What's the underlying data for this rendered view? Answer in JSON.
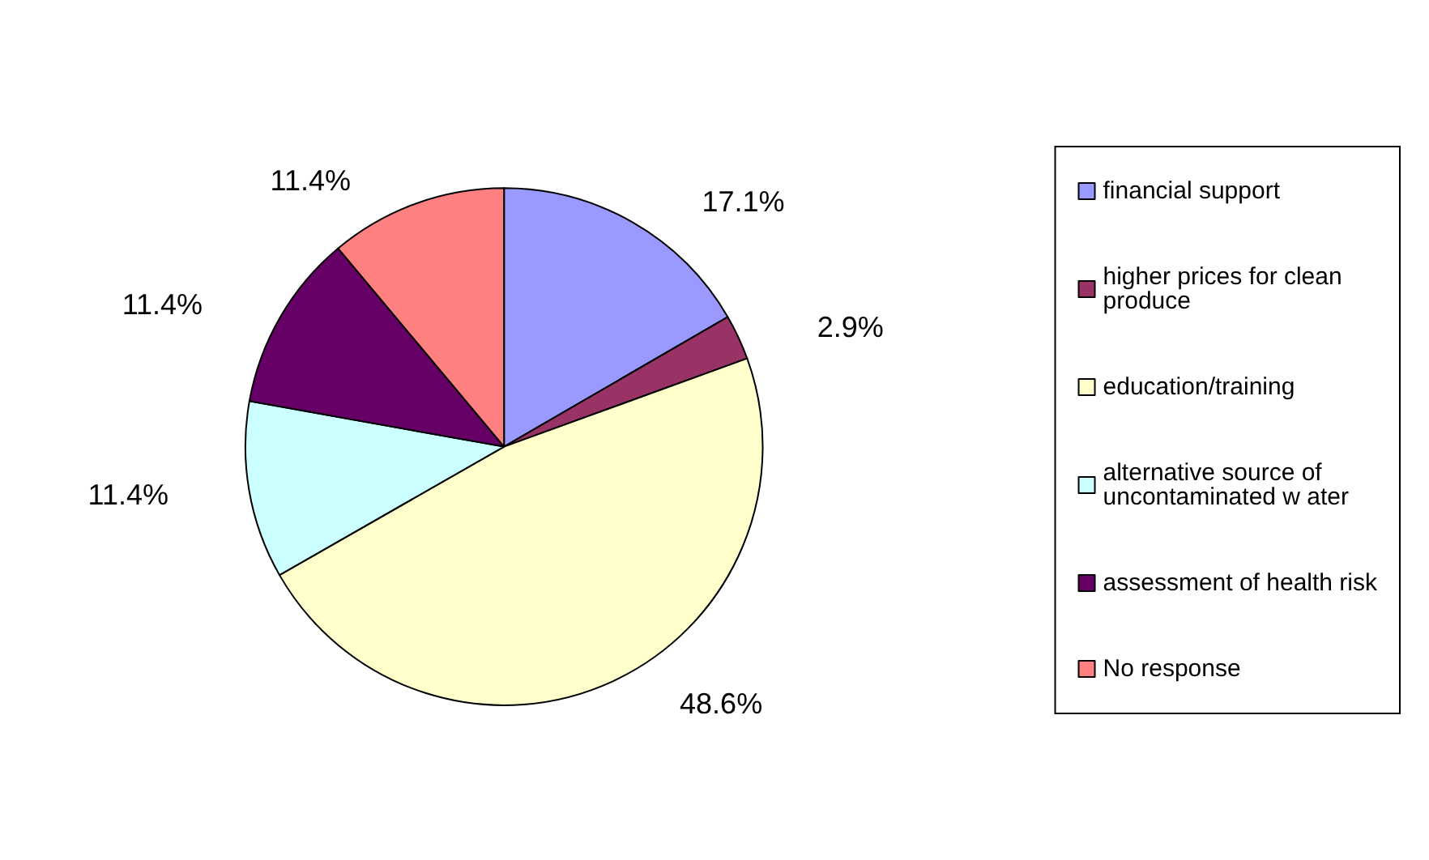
{
  "chart_data": {
    "type": "pie",
    "categories": [
      "financial support",
      "higher prices for clean produce",
      "education/training",
      "alternative source of uncontaminated w ater",
      "assessment of health risk",
      "No response"
    ],
    "values": [
      17.1,
      2.9,
      48.6,
      11.4,
      11.4,
      11.4
    ],
    "colors": [
      "#9999ff",
      "#993366",
      "#ffffcc",
      "#ccffff",
      "#660066",
      "#ff8080"
    ],
    "value_labels": [
      "17.1%",
      "2.9%",
      "48.6%",
      "11.4%",
      "11.4%",
      "11.4%"
    ],
    "legend": "right"
  }
}
